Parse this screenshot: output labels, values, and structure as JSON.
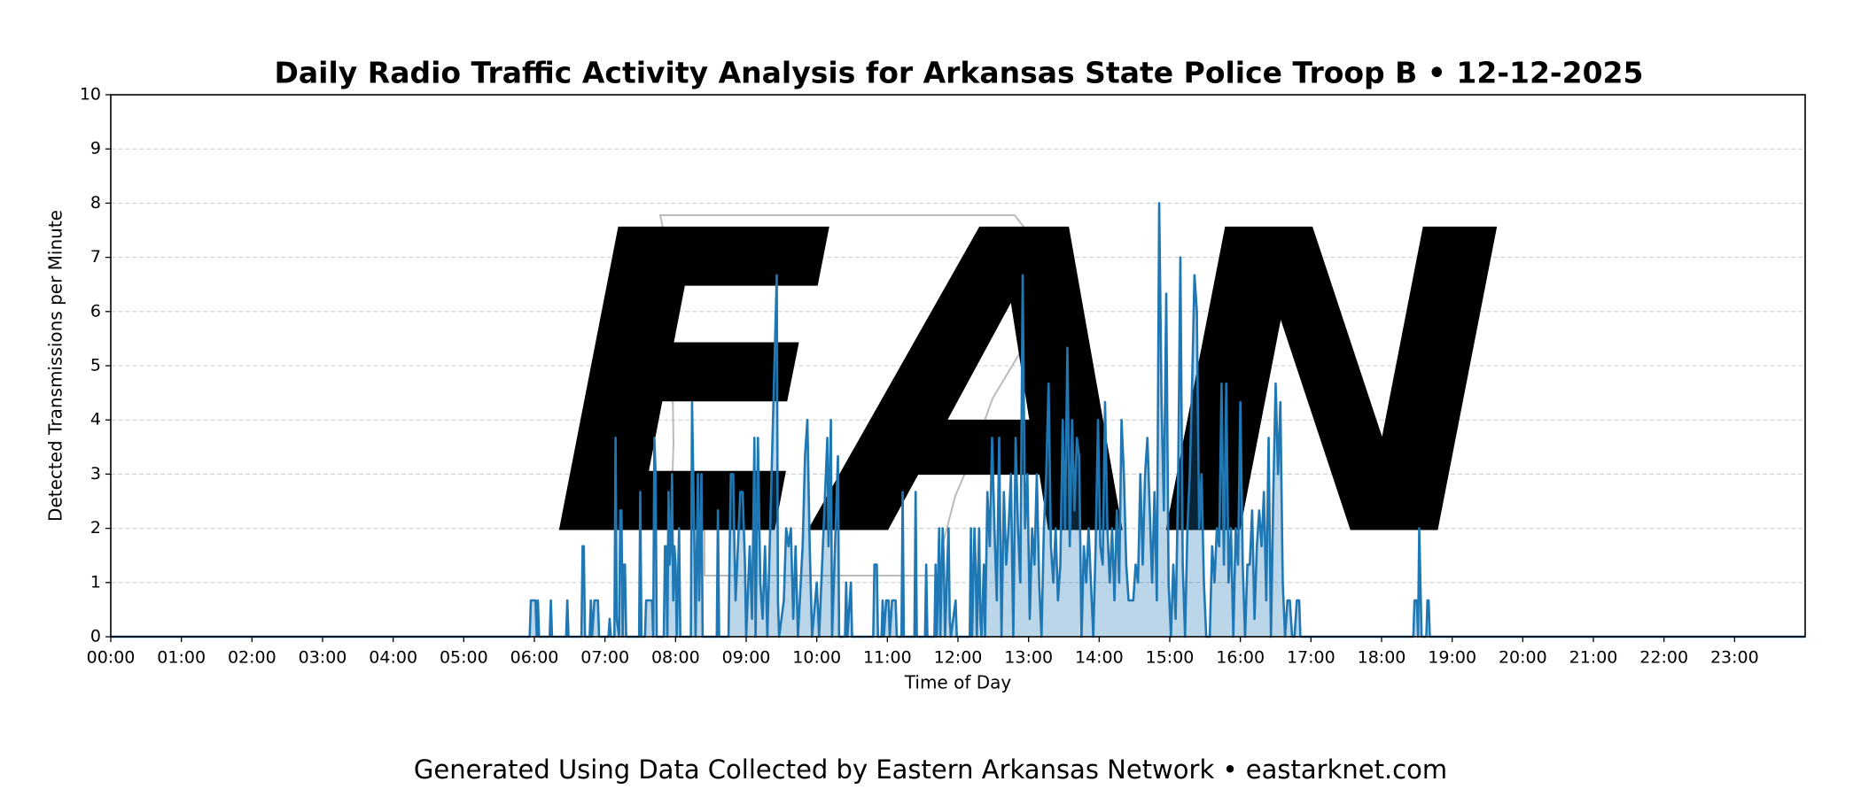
{
  "chart_data": {
    "type": "line",
    "title": "Daily Radio Traffic Activity Analysis for Arkansas State Police Troop B • 12-12-2025",
    "xlabel": "Time of Day",
    "ylabel": "Detected Transmissions per Minute",
    "footer": "Generated Using Data Collected by Eastern Arkansas Network • eastarknet.com",
    "watermark": "EAN",
    "color": "#1f77b4",
    "area": true,
    "grid": true,
    "xlim": [
      0,
      1440
    ],
    "ylim": [
      0,
      10
    ],
    "yticks": [
      0,
      1,
      2,
      3,
      4,
      5,
      6,
      7,
      8,
      9,
      10
    ],
    "xticks": [
      {
        "value": 0,
        "label": "00:00"
      },
      {
        "value": 60,
        "label": "01:00"
      },
      {
        "value": 120,
        "label": "02:00"
      },
      {
        "value": 180,
        "label": "03:00"
      },
      {
        "value": 240,
        "label": "04:00"
      },
      {
        "value": 300,
        "label": "05:00"
      },
      {
        "value": 360,
        "label": "06:00"
      },
      {
        "value": 420,
        "label": "07:00"
      },
      {
        "value": 480,
        "label": "08:00"
      },
      {
        "value": 540,
        "label": "09:00"
      },
      {
        "value": 600,
        "label": "10:00"
      },
      {
        "value": 660,
        "label": "11:00"
      },
      {
        "value": 720,
        "label": "12:00"
      },
      {
        "value": 780,
        "label": "13:00"
      },
      {
        "value": 840,
        "label": "14:00"
      },
      {
        "value": 900,
        "label": "15:00"
      },
      {
        "value": 960,
        "label": "16:00"
      },
      {
        "value": 1020,
        "label": "17:00"
      },
      {
        "value": 1080,
        "label": "18:00"
      },
      {
        "value": 1140,
        "label": "19:00"
      },
      {
        "value": 1200,
        "label": "20:00"
      },
      {
        "value": 1260,
        "label": "21:00"
      },
      {
        "value": 1320,
        "label": "22:00"
      },
      {
        "value": 1380,
        "label": "23:00"
      }
    ],
    "x": [
      0,
      356,
      357,
      361,
      362,
      363,
      364,
      373,
      374,
      375,
      387,
      388,
      389,
      400,
      401,
      402,
      403,
      407,
      408,
      409,
      411,
      414,
      415,
      423,
      424,
      425,
      428,
      429,
      430,
      432,
      433,
      434,
      435,
      436,
      437,
      438,
      449,
      450,
      451,
      454,
      455,
      460,
      461,
      462,
      463,
      464,
      470,
      471,
      472,
      473,
      474,
      475,
      476,
      477,
      478,
      479,
      480,
      481,
      483,
      484,
      493,
      494,
      495,
      496,
      497,
      499,
      500,
      502,
      503,
      515,
      516,
      517,
      525,
      526,
      527,
      529,
      530,
      531,
      535,
      537,
      539,
      540,
      543,
      545,
      547,
      548,
      550,
      552,
      554,
      556,
      558,
      566,
      567,
      568,
      572,
      574,
      576,
      578,
      580,
      582,
      584,
      588,
      590,
      592,
      594,
      596,
      600,
      602,
      609,
      610,
      612,
      613,
      616,
      618,
      619,
      624,
      625,
      626,
      629,
      630,
      648,
      649,
      651,
      652,
      655,
      656,
      657,
      659,
      661,
      662,
      664,
      667,
      668,
      672,
      673,
      674,
      683,
      684,
      685,
      692,
      693,
      694,
      700,
      701,
      702,
      704,
      705,
      707,
      708,
      709,
      712,
      713,
      714,
      718,
      719,
      730,
      731,
      732,
      734,
      735,
      736,
      738,
      739,
      740,
      742,
      743,
      745,
      747,
      749,
      751,
      753,
      755,
      757,
      759,
      761,
      763,
      765,
      767,
      769,
      771,
      773,
      775,
      777,
      779,
      781,
      783,
      785,
      787,
      789,
      791,
      793,
      795,
      797,
      799,
      801,
      803,
      805,
      807,
      809,
      811,
      813,
      815,
      817,
      819,
      821,
      823,
      825,
      827,
      829,
      831,
      833,
      835,
      837,
      839,
      841,
      843,
      845,
      847,
      849,
      851,
      853,
      855,
      857,
      859,
      861,
      863,
      865,
      867,
      869,
      871,
      873,
      875,
      877,
      879,
      881,
      883,
      885,
      887,
      889,
      891,
      893,
      895,
      897,
      899,
      901,
      903,
      905,
      907,
      909,
      911,
      913,
      915,
      917,
      919,
      921,
      923,
      925,
      927,
      929,
      931,
      934,
      936,
      938,
      940,
      942,
      944,
      946,
      948,
      950,
      952,
      954,
      956,
      958,
      960,
      962,
      964,
      966,
      968,
      970,
      972,
      974,
      976,
      978,
      980,
      982,
      984,
      986,
      988,
      990,
      992,
      994,
      996,
      998,
      1000,
      1002,
      1004,
      1006,
      1008,
      1010,
      1011,
      1107,
      1108,
      1110,
      1111,
      1112,
      1113,
      1114,
      1118,
      1119,
      1120,
      1121,
      1440
    ],
    "values": [
      0,
      0,
      0.67,
      0.67,
      0,
      0.67,
      0,
      0,
      0.67,
      0,
      0,
      0.67,
      0,
      0,
      1.67,
      1.67,
      0,
      0,
      0.67,
      0,
      0.67,
      0.67,
      0,
      0,
      0.33,
      0,
      0,
      3.67,
      0.33,
      0,
      2.33,
      2.33,
      0,
      1.33,
      1.33,
      0,
      0,
      2.67,
      0,
      0,
      0.67,
      0.67,
      0,
      3.67,
      3,
      0,
      0,
      1.67,
      1.67,
      0,
      2.67,
      1.33,
      1.67,
      3,
      0.67,
      1.67,
      1.33,
      0,
      2,
      0,
      0,
      4.33,
      3,
      1.67,
      0,
      3,
      0.67,
      3,
      0,
      0,
      2.33,
      0,
      0,
      1.67,
      3,
      3,
      1.67,
      0.67,
      2.67,
      2.67,
      1.33,
      0,
      1.67,
      0.33,
      3.67,
      0,
      3.67,
      1,
      0.33,
      1.67,
      0,
      6.67,
      0.67,
      0,
      0.67,
      2,
      1.67,
      2,
      0.33,
      1.67,
      0,
      1.67,
      3.33,
      4,
      1.67,
      0,
      1,
      0,
      3.67,
      1.67,
      4,
      0,
      2,
      3.33,
      0,
      0,
      1,
      0,
      1,
      0,
      0,
      1.33,
      1.33,
      0,
      0,
      0.67,
      0,
      0.67,
      0.67,
      0,
      0.67,
      0.67,
      0,
      0,
      2.67,
      0,
      0,
      2.67,
      0,
      0,
      1.33,
      0,
      0,
      1.33,
      0,
      2,
      0,
      2,
      1.33,
      0,
      2,
      0.33,
      0,
      0.67,
      0,
      0,
      2,
      0,
      2,
      1.33,
      0,
      2,
      0.33,
      0,
      1.33,
      0,
      2.67,
      1.67,
      3.67,
      2,
      0.67,
      3.67,
      0,
      2.67,
      1.33,
      2,
      3,
      0,
      3.67,
      2,
      1,
      6.67,
      2,
      3,
      0.33,
      2,
      1.33,
      3,
      1,
      0,
      2,
      3,
      4.67,
      1.67,
      1,
      2,
      0.67,
      1.33,
      4,
      2,
      5.33,
      1.67,
      4,
      2.33,
      3.67,
      3.33,
      0,
      1.67,
      1,
      2,
      1,
      0,
      1.67,
      4,
      1.67,
      1.33,
      4.33,
      2,
      1,
      2,
      0.67,
      2.33,
      1,
      4,
      3,
      1.33,
      0.67,
      0.67,
      0.67,
      1.33,
      1,
      3,
      1.33,
      3,
      3.67,
      2.33,
      1,
      2.67,
      0.67,
      8,
      4.33,
      2.33,
      6.33,
      1,
      0,
      1.33,
      0.33,
      2.67,
      7,
      1.33,
      0,
      2,
      3,
      4.67,
      6.67,
      6,
      2,
      3,
      1,
      0,
      0,
      1.67,
      1,
      2,
      1.67,
      4.67,
      1.33,
      4.67,
      1,
      2,
      0,
      2,
      1.33,
      4.33,
      1.33,
      0,
      1.33,
      1.33,
      2.33,
      0.33,
      1.67,
      2.33,
      1.67,
      2.67,
      0.67,
      3.67,
      0,
      2.67,
      4.67,
      3,
      4.33,
      1,
      0,
      0.67,
      0.67,
      0,
      0,
      0.67,
      0.67,
      0,
      0,
      0.67,
      0.67,
      0,
      2,
      1,
      0,
      0,
      0.67,
      0.67,
      0,
      0
    ]
  }
}
